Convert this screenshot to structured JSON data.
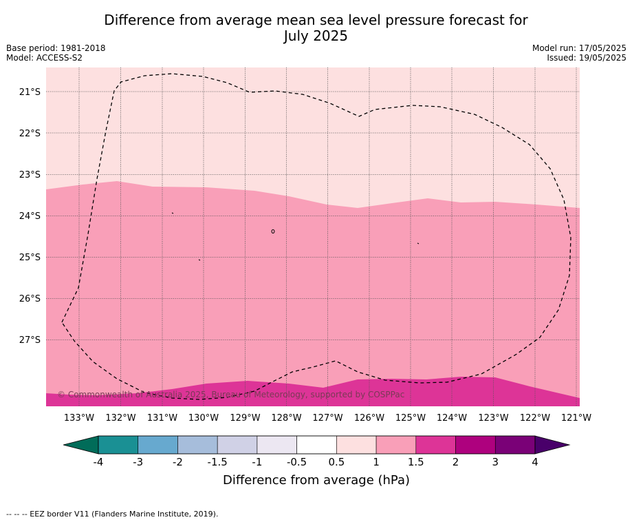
{
  "title": {
    "line1": "Difference from average mean sea level pressure forecast for",
    "line2": "July 2025"
  },
  "meta": {
    "base_period": "Base period: 1981-2018",
    "model": "Model: ACCESS-S2",
    "model_run": "Model run: 17/05/2025",
    "issued": "Issued: 19/05/2025"
  },
  "map": {
    "lon_labels": [
      "133°W",
      "132°W",
      "131°W",
      "130°W",
      "129°W",
      "128°W",
      "127°W",
      "126°W",
      "125°W",
      "124°W",
      "123°W",
      "122°W",
      "121°W"
    ],
    "lat_labels": [
      "21°S",
      "22°S",
      "23°S",
      "24°S",
      "25°S",
      "26°S",
      "27°S"
    ],
    "copyright": "© Commonwealth of Australia 2025, Bureau of Meteorology, supported by COSPPac",
    "fill_colors": {
      "band_0_5_to_1": "#fde0e0",
      "band_1_to_1_5": "#f99fb8",
      "band_1_5_to_2": "#dd3497"
    }
  },
  "colorbar": {
    "ticks": [
      "-4",
      "-3",
      "-2",
      "-1.5",
      "-1",
      "-0.5",
      "0.5",
      "1",
      "1.5",
      "2",
      "3",
      "4"
    ],
    "colors": [
      "#1a9094",
      "#67a9cf",
      "#a6bddb",
      "#d0d1e6",
      "#ece7f2",
      "#ffffff",
      "#fde0e0",
      "#f99fb8",
      "#dd3497",
      "#ae017e",
      "#7a0177"
    ],
    "under_color": "#016c59",
    "over_color": "#49006a",
    "label": "Difference from average (hPa)"
  },
  "footer": {
    "legend_text": "--  --  -- EEZ border V11 (Flanders Marine Institute, 2019)."
  }
}
